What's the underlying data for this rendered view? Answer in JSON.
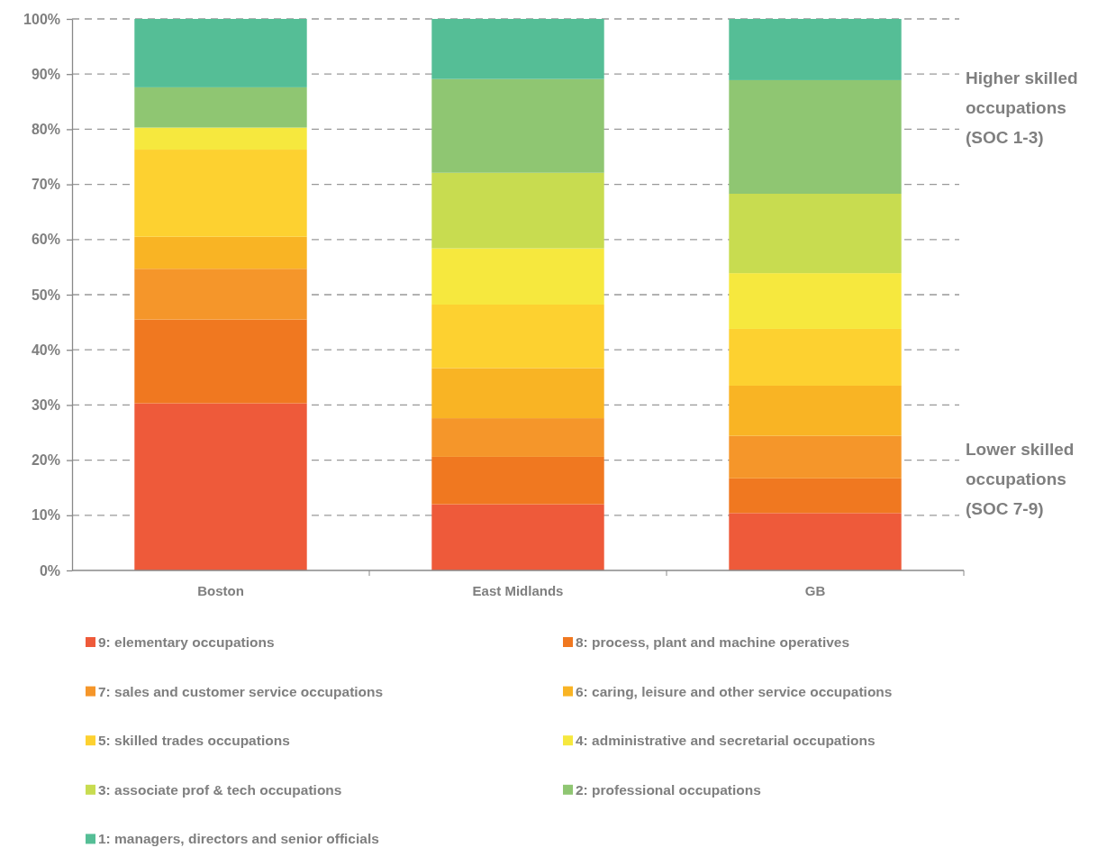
{
  "chart_data": {
    "type": "bar",
    "stacked": true,
    "categories": [
      "Boston",
      "East Midlands",
      "GB"
    ],
    "series": [
      {
        "name": "9: elementary occupations",
        "color": "#ee5a3a",
        "values": [
          30.3,
          12.0,
          10.4
        ]
      },
      {
        "name": "8: process, plant and machine operatives",
        "color": "#f07820",
        "values": [
          15.2,
          8.6,
          6.3
        ]
      },
      {
        "name": "7: sales and customer service occupations",
        "color": "#f5962a",
        "values": [
          9.2,
          7.0,
          7.7
        ]
      },
      {
        "name": "6: caring, leisure and other service occupations",
        "color": "#f9b424",
        "values": [
          5.8,
          9.1,
          9.1
        ]
      },
      {
        "name": "5: skilled trades occupations",
        "color": "#fdd130",
        "values": [
          15.8,
          11.5,
          10.3
        ]
      },
      {
        "name": "4: administrative and secretarial occupations",
        "color": "#f6e83e",
        "values": [
          4.0,
          10.2,
          10.1
        ]
      },
      {
        "name": "3: associate prof & tech occupations",
        "color": "#c8dc50",
        "values": [
          0,
          13.7,
          14.4
        ]
      },
      {
        "name": "2: professional occupations",
        "color": "#8fc672",
        "values": [
          7.3,
          17.0,
          20.6
        ]
      },
      {
        "name": "1: managers, directors and senior officials",
        "color": "#55be96",
        "values": [
          12.4,
          10.9,
          11.1
        ]
      }
    ],
    "ylim": [
      0,
      100
    ],
    "yticks": [
      {
        "value": 0,
        "label": "0%"
      },
      {
        "value": 10,
        "label": "10%"
      },
      {
        "value": 20,
        "label": "20%"
      },
      {
        "value": 30,
        "label": "30%"
      },
      {
        "value": 40,
        "label": "40%"
      },
      {
        "value": 50,
        "label": "50%"
      },
      {
        "value": 60,
        "label": "60%"
      },
      {
        "value": 70,
        "label": "70%"
      },
      {
        "value": 80,
        "label": "80%"
      },
      {
        "value": 90,
        "label": "90%"
      },
      {
        "value": 100,
        "label": "100%"
      }
    ],
    "grid": "y",
    "legend": "bottom",
    "annotations": [
      "Higher skilled occupations (SOC 1-3)",
      "Lower skilled occupations (SOC 7-9)"
    ]
  }
}
